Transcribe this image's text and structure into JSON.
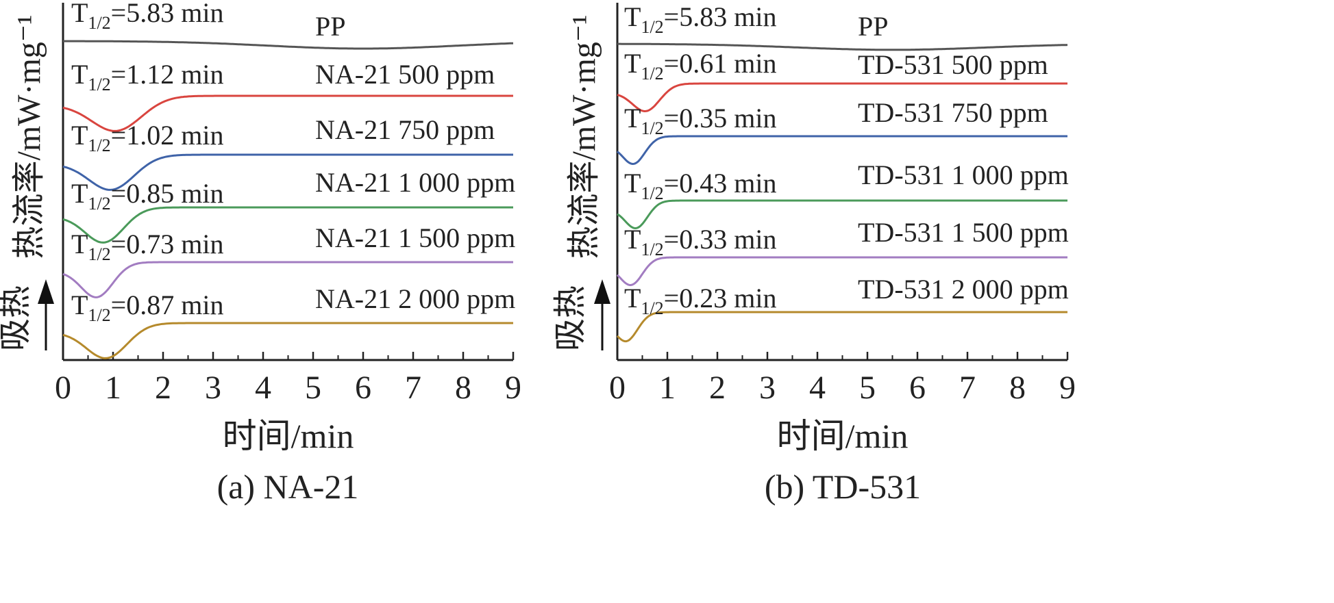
{
  "chart_data": [
    {
      "type": "line",
      "caption": "(a) NA-21",
      "xlabel": "时间/min",
      "ylabel": "热流率/mW·mg⁻¹",
      "endotherm_label": "吸热",
      "xlim": [
        0,
        9
      ],
      "x_ticks": [
        "0",
        "1",
        "2",
        "3",
        "4",
        "5",
        "6",
        "7",
        "8",
        "9"
      ],
      "grid": false,
      "legend": "none (series names printed next to each curve)",
      "colors": {
        "PP": "#555555",
        "500": "#d9453f",
        "750": "#3f63a8",
        "1000": "#4a9a5a",
        "1500": "#a27cc1",
        "2000": "#b58a2c"
      },
      "series": [
        {
          "name": "PP",
          "t_half": "5.83",
          "color": "#555555",
          "shape": "broad shallow dip",
          "min_x": 6.0,
          "depth": 0.25
        },
        {
          "name": "NA-21 500 ppm",
          "t_half": "1.12",
          "color": "#d9453f",
          "min_x": 1.1,
          "depth": 1.0
        },
        {
          "name": "NA-21 750 ppm",
          "t_half": "1.02",
          "color": "#3f63a8",
          "min_x": 1.0,
          "depth": 1.0
        },
        {
          "name": "NA-21 1 000 ppm",
          "t_half": "0.85",
          "color": "#4a9a5a",
          "min_x": 0.85,
          "depth": 1.0
        },
        {
          "name": "NA-21 1 500 ppm",
          "t_half": "0.73",
          "color": "#a27cc1",
          "min_x": 0.7,
          "depth": 1.0
        },
        {
          "name": "NA-21 2 000 ppm",
          "t_half": "0.87",
          "color": "#b58a2c",
          "min_x": 0.9,
          "depth": 1.0
        }
      ]
    },
    {
      "type": "line",
      "caption": "(b) TD-531",
      "xlabel": "时间/min",
      "ylabel": "热流率/mW·mg⁻¹",
      "endotherm_label": "吸热",
      "xlim": [
        0,
        9
      ],
      "x_ticks": [
        "0",
        "1",
        "2",
        "3",
        "4",
        "5",
        "6",
        "7",
        "8",
        "9"
      ],
      "grid": false,
      "legend": "none (series names printed next to each curve)",
      "colors": {
        "PP": "#555555",
        "500": "#d9453f",
        "750": "#3f63a8",
        "1000": "#4a9a5a",
        "1500": "#a27cc1",
        "2000": "#b58a2c"
      },
      "series": [
        {
          "name": "PP",
          "t_half": "5.83",
          "color": "#555555",
          "shape": "broad shallow dip",
          "min_x": 5.5,
          "depth": 0.2
        },
        {
          "name": "TD-531 500 ppm",
          "t_half": "0.61",
          "color": "#d9453f",
          "min_x": 0.6,
          "depth": 0.75
        },
        {
          "name": "TD-531 750 ppm",
          "t_half": "0.35",
          "color": "#3f63a8",
          "min_x": 0.35,
          "depth": 0.75
        },
        {
          "name": "TD-531 1 000 ppm",
          "t_half": "0.43",
          "color": "#4a9a5a",
          "min_x": 0.4,
          "depth": 0.75
        },
        {
          "name": "TD-531 1 500 ppm",
          "t_half": "0.33",
          "color": "#a27cc1",
          "min_x": 0.3,
          "depth": 0.75
        },
        {
          "name": "TD-531 2 000 ppm",
          "t_half": "0.23",
          "color": "#b58a2c",
          "min_x": 0.2,
          "depth": 0.8
        }
      ]
    }
  ]
}
